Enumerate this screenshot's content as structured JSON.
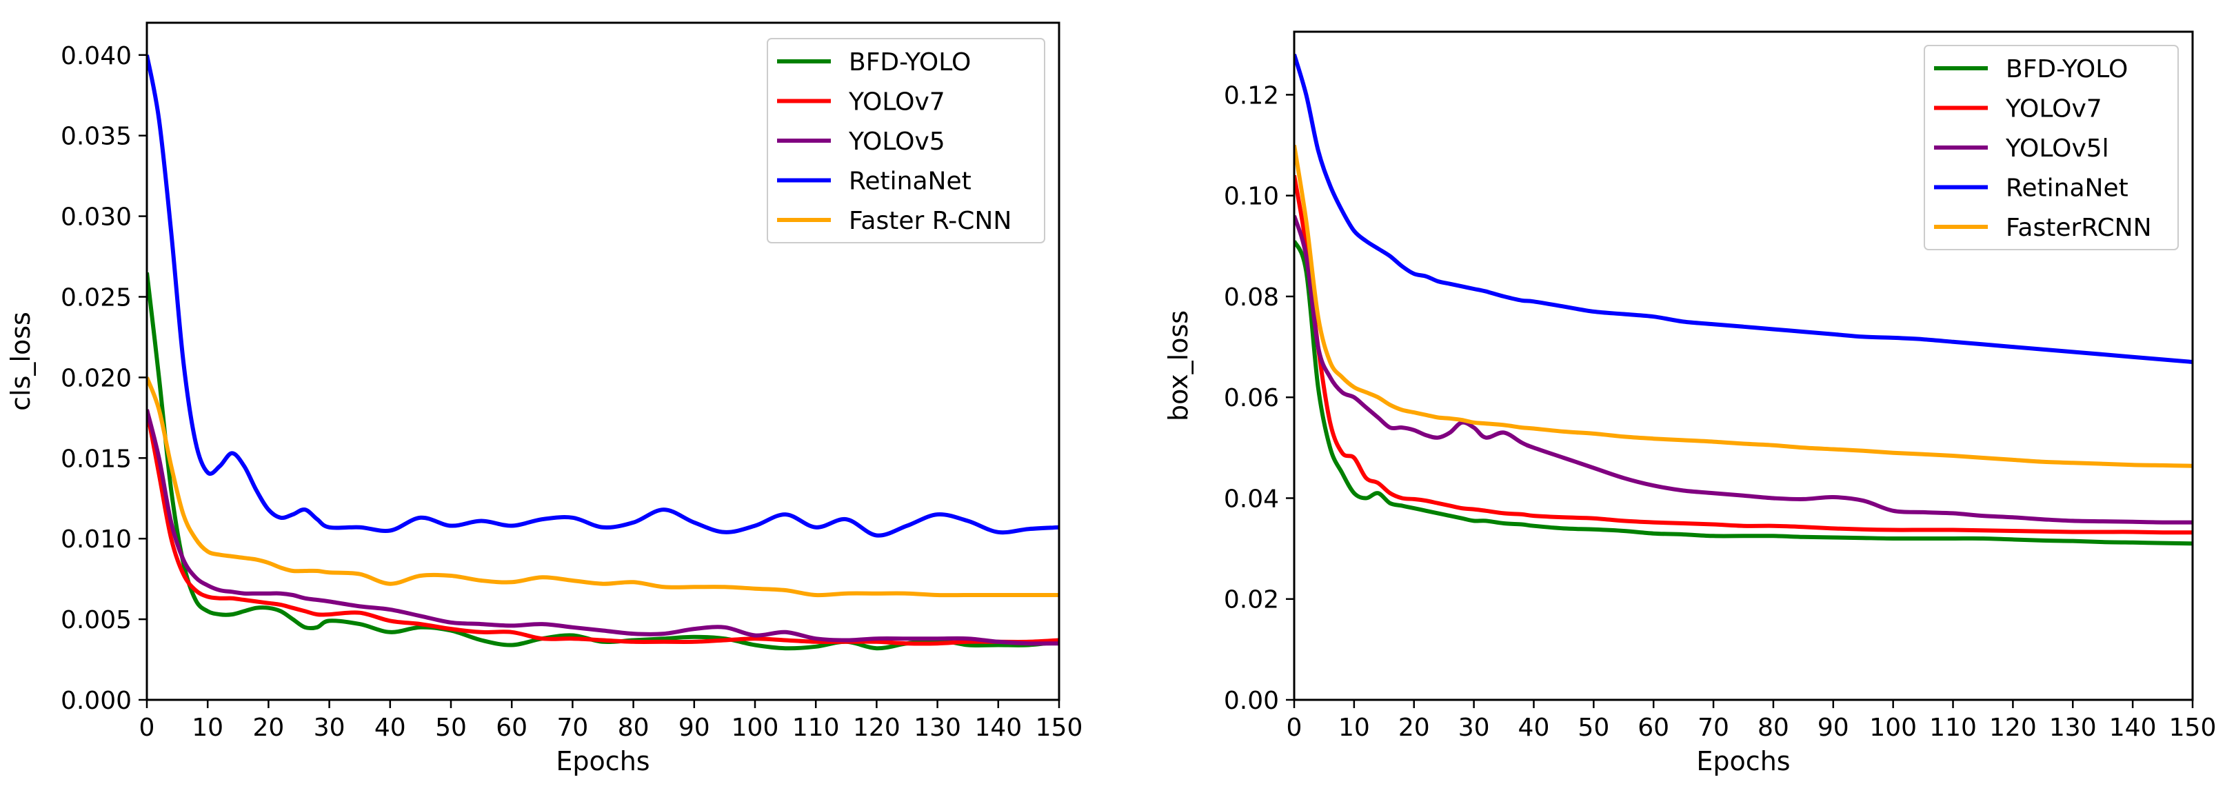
{
  "chart_data": [
    {
      "type": "line",
      "xlabel": "Epochs",
      "ylabel": "cls_loss",
      "xlim": [
        0,
        150
      ],
      "ylim": [
        0,
        0.042
      ],
      "xticks": [
        0,
        10,
        20,
        30,
        40,
        50,
        60,
        70,
        80,
        90,
        100,
        110,
        120,
        130,
        140,
        150
      ],
      "yticks": [
        "0.000",
        "0.005",
        "0.010",
        "0.015",
        "0.020",
        "0.025",
        "0.030",
        "0.035",
        "0.040"
      ],
      "grid": false,
      "legend": "top-right",
      "x": [
        0,
        2,
        4,
        6,
        8,
        10,
        12,
        14,
        16,
        18,
        20,
        22,
        24,
        26,
        28,
        30,
        35,
        40,
        45,
        50,
        55,
        60,
        65,
        70,
        75,
        80,
        85,
        90,
        95,
        100,
        105,
        110,
        115,
        120,
        125,
        130,
        135,
        140,
        145,
        150
      ],
      "series": [
        {
          "name": "BFD-YOLO",
          "color": "#008000",
          "values": [
            0.0265,
            0.02,
            0.013,
            0.0085,
            0.0062,
            0.0055,
            0.0053,
            0.0053,
            0.0055,
            0.0057,
            0.0057,
            0.0055,
            0.005,
            0.0045,
            0.0045,
            0.0049,
            0.0047,
            0.0042,
            0.0045,
            0.0043,
            0.0037,
            0.0034,
            0.0038,
            0.004,
            0.0036,
            0.0037,
            0.0038,
            0.0039,
            0.0038,
            0.0034,
            0.0032,
            0.0033,
            0.0036,
            0.0032,
            0.0035,
            0.0037,
            0.0034,
            0.0034,
            0.0034,
            0.0036
          ]
        },
        {
          "name": "YOLOv7",
          "color": "#ff0000",
          "values": [
            0.018,
            0.014,
            0.01,
            0.0078,
            0.0068,
            0.0064,
            0.0063,
            0.0063,
            0.0062,
            0.0061,
            0.006,
            0.0059,
            0.0057,
            0.0055,
            0.0053,
            0.0053,
            0.0054,
            0.0049,
            0.0047,
            0.0044,
            0.0042,
            0.0042,
            0.0038,
            0.0038,
            0.0037,
            0.0036,
            0.0036,
            0.0036,
            0.0037,
            0.0038,
            0.0037,
            0.0036,
            0.0036,
            0.0036,
            0.0035,
            0.0035,
            0.0036,
            0.0036,
            0.0036,
            0.0037
          ]
        },
        {
          "name": "YOLOv5",
          "color": "#800080",
          "values": [
            0.018,
            0.015,
            0.011,
            0.0087,
            0.0076,
            0.0071,
            0.0068,
            0.0067,
            0.0066,
            0.0066,
            0.0066,
            0.0066,
            0.0065,
            0.0063,
            0.0062,
            0.0061,
            0.0058,
            0.0056,
            0.0052,
            0.0048,
            0.0047,
            0.0046,
            0.0047,
            0.0045,
            0.0043,
            0.0041,
            0.0041,
            0.0044,
            0.0045,
            0.004,
            0.0042,
            0.0038,
            0.0037,
            0.0038,
            0.0038,
            0.0038,
            0.0038,
            0.0036,
            0.0035,
            0.0035
          ]
        },
        {
          "name": "RetinaNet",
          "color": "#0000ff",
          "values": [
            0.04,
            0.036,
            0.029,
            0.021,
            0.016,
            0.0141,
            0.0145,
            0.0153,
            0.0145,
            0.013,
            0.0118,
            0.0113,
            0.0115,
            0.0118,
            0.0112,
            0.0107,
            0.0107,
            0.0105,
            0.0113,
            0.0108,
            0.0111,
            0.0108,
            0.0112,
            0.0113,
            0.0107,
            0.011,
            0.0118,
            0.011,
            0.0104,
            0.0108,
            0.0115,
            0.0107,
            0.0112,
            0.0102,
            0.0108,
            0.0115,
            0.0111,
            0.0104,
            0.0106,
            0.0107
          ]
        },
        {
          "name": "Faster R-CNN",
          "color": "#ffa500",
          "values": [
            0.02,
            0.018,
            0.0145,
            0.0115,
            0.01,
            0.0092,
            0.009,
            0.0089,
            0.0088,
            0.0087,
            0.0085,
            0.0082,
            0.008,
            0.008,
            0.008,
            0.0079,
            0.0078,
            0.0072,
            0.0077,
            0.0077,
            0.0074,
            0.0073,
            0.0076,
            0.0074,
            0.0072,
            0.0073,
            0.007,
            0.007,
            0.007,
            0.0069,
            0.0068,
            0.0065,
            0.0066,
            0.0066,
            0.0066,
            0.0065,
            0.0065,
            0.0065,
            0.0065,
            0.0065
          ]
        }
      ]
    },
    {
      "type": "line",
      "xlabel": "Epochs",
      "ylabel": "box_loss",
      "xlim": [
        0,
        150
      ],
      "ylim": [
        0,
        0.1325
      ],
      "xticks": [
        0,
        10,
        20,
        30,
        40,
        50,
        60,
        70,
        80,
        90,
        100,
        110,
        120,
        130,
        140,
        150
      ],
      "yticks": [
        "0.00",
        "0.02",
        "0.04",
        "0.06",
        "0.08",
        "0.10",
        "0.12"
      ],
      "grid": false,
      "legend": "top-right",
      "x": [
        0,
        2,
        4,
        6,
        8,
        10,
        12,
        14,
        16,
        18,
        20,
        22,
        24,
        26,
        28,
        30,
        32,
        35,
        38,
        40,
        45,
        50,
        55,
        60,
        65,
        70,
        75,
        80,
        85,
        90,
        95,
        100,
        105,
        110,
        115,
        120,
        125,
        130,
        135,
        140,
        145,
        150
      ],
      "series": [
        {
          "name": "BFD-YOLO",
          "color": "#008000",
          "values": [
            0.091,
            0.085,
            0.062,
            0.05,
            0.045,
            0.041,
            0.04,
            0.041,
            0.039,
            0.0385,
            0.038,
            0.0375,
            0.037,
            0.0365,
            0.036,
            0.0355,
            0.0355,
            0.035,
            0.0348,
            0.0345,
            0.034,
            0.0338,
            0.0335,
            0.033,
            0.0328,
            0.0325,
            0.0325,
            0.0325,
            0.0323,
            0.0322,
            0.0321,
            0.032,
            0.032,
            0.032,
            0.032,
            0.0318,
            0.0316,
            0.0315,
            0.0313,
            0.0312,
            0.0311,
            0.031
          ]
        },
        {
          "name": "YOLOv7",
          "color": "#ff0000",
          "values": [
            0.104,
            0.09,
            0.07,
            0.055,
            0.049,
            0.048,
            0.044,
            0.043,
            0.041,
            0.04,
            0.0398,
            0.0395,
            0.039,
            0.0385,
            0.038,
            0.0378,
            0.0375,
            0.037,
            0.0368,
            0.0365,
            0.0362,
            0.036,
            0.0355,
            0.0352,
            0.035,
            0.0348,
            0.0345,
            0.0345,
            0.0343,
            0.034,
            0.0338,
            0.0337,
            0.0337,
            0.0337,
            0.0336,
            0.0335,
            0.0334,
            0.0333,
            0.0333,
            0.0333,
            0.0332,
            0.0332
          ]
        },
        {
          "name": "YOLOv5l",
          "color": "#800080",
          "values": [
            0.096,
            0.088,
            0.07,
            0.064,
            0.061,
            0.06,
            0.058,
            0.056,
            0.054,
            0.054,
            0.0535,
            0.0525,
            0.052,
            0.053,
            0.055,
            0.054,
            0.052,
            0.053,
            0.051,
            0.05,
            0.048,
            0.046,
            0.044,
            0.0425,
            0.0415,
            0.041,
            0.0405,
            0.04,
            0.0398,
            0.0402,
            0.0395,
            0.0375,
            0.0372,
            0.037,
            0.0365,
            0.0362,
            0.0358,
            0.0355,
            0.0354,
            0.0353,
            0.0352,
            0.0352
          ]
        },
        {
          "name": "RetinaNet",
          "color": "#0000ff",
          "values": [
            0.128,
            0.12,
            0.109,
            0.102,
            0.097,
            0.093,
            0.091,
            0.0895,
            0.088,
            0.086,
            0.0845,
            0.084,
            0.083,
            0.0825,
            0.082,
            0.0815,
            0.081,
            0.08,
            0.0792,
            0.079,
            0.078,
            0.077,
            0.0765,
            0.076,
            0.075,
            0.0745,
            0.074,
            0.0735,
            0.073,
            0.0725,
            0.072,
            0.0718,
            0.0715,
            0.071,
            0.0705,
            0.07,
            0.0695,
            0.069,
            0.0685,
            0.068,
            0.0675,
            0.067
          ]
        },
        {
          "name": "FasterRCNN",
          "color": "#ffa500",
          "values": [
            0.11,
            0.095,
            0.076,
            0.067,
            0.064,
            0.062,
            0.061,
            0.06,
            0.0585,
            0.0575,
            0.057,
            0.0565,
            0.056,
            0.0558,
            0.0555,
            0.055,
            0.0548,
            0.0545,
            0.054,
            0.0538,
            0.0532,
            0.0528,
            0.0522,
            0.0518,
            0.0515,
            0.0512,
            0.0508,
            0.0505,
            0.05,
            0.0497,
            0.0494,
            0.049,
            0.0487,
            0.0484,
            0.048,
            0.0476,
            0.0472,
            0.047,
            0.0468,
            0.0466,
            0.0465,
            0.0464
          ]
        }
      ]
    }
  ]
}
